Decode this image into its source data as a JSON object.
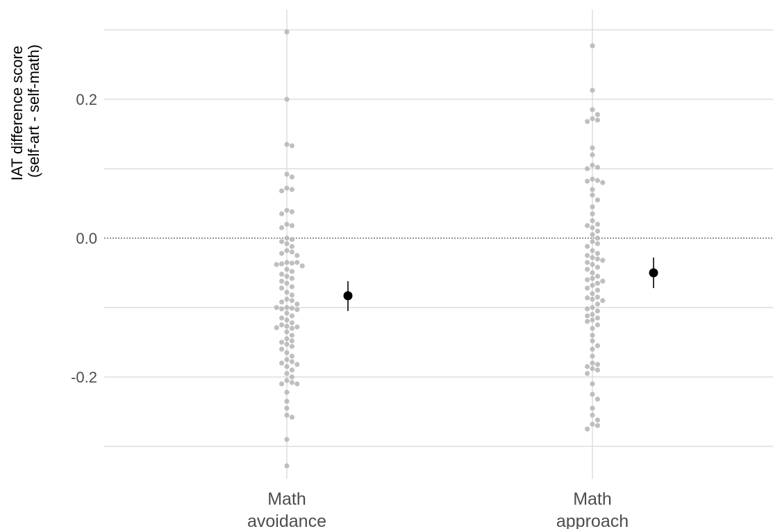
{
  "chart_data": {
    "type": "scatter",
    "title": "",
    "xlabel": "",
    "ylabel_lines": [
      "IAT difference score",
      "(self-art - self-math)"
    ],
    "categories": [
      "Math avoidance",
      "Math approach"
    ],
    "category_label_lines": [
      [
        "Math",
        "avoidance"
      ],
      [
        "Math",
        "approach"
      ]
    ],
    "ylim": [
      -0.3,
      0.3
    ],
    "y_ticks": [
      -0.2,
      0.0,
      0.2
    ],
    "y_tick_labels": [
      "-0.2",
      "0.0",
      "0.2"
    ],
    "reference_line": 0.0,
    "grid": true,
    "colors": {
      "points": "#b8b8b8",
      "summary": "#000000",
      "grid": "#d6d6d6",
      "reference": "#555555"
    },
    "series": [
      {
        "category": "Math avoidance",
        "points": [
          0.297,
          0.2,
          0.135,
          0.133,
          0.092,
          0.088,
          0.072,
          0.07,
          0.068,
          0.04,
          0.038,
          0.035,
          0.02,
          0.018,
          0.015,
          0.0,
          -0.002,
          -0.005,
          -0.008,
          -0.012,
          -0.018,
          -0.02,
          -0.022,
          -0.025,
          -0.035,
          -0.035,
          -0.036,
          -0.037,
          -0.038,
          -0.04,
          -0.045,
          -0.048,
          -0.052,
          -0.055,
          -0.058,
          -0.062,
          -0.065,
          -0.07,
          -0.072,
          -0.078,
          -0.082,
          -0.088,
          -0.09,
          -0.092,
          -0.095,
          -0.1,
          -0.1,
          -0.101,
          -0.102,
          -0.103,
          -0.108,
          -0.112,
          -0.115,
          -0.118,
          -0.122,
          -0.125,
          -0.127,
          -0.128,
          -0.129,
          -0.13,
          -0.135,
          -0.14,
          -0.145,
          -0.148,
          -0.15,
          -0.153,
          -0.156,
          -0.16,
          -0.165,
          -0.17,
          -0.175,
          -0.178,
          -0.18,
          -0.182,
          -0.185,
          -0.19,
          -0.195,
          -0.2,
          -0.205,
          -0.208,
          -0.21,
          -0.21,
          -0.222,
          -0.235,
          -0.245,
          -0.255,
          -0.258,
          -0.29,
          -0.328
        ],
        "mean": -0.083,
        "ci": [
          -0.105,
          -0.062
        ]
      },
      {
        "category": "Math approach",
        "points": [
          0.277,
          0.213,
          0.185,
          0.178,
          0.172,
          0.17,
          0.168,
          0.13,
          0.12,
          0.105,
          0.102,
          0.1,
          0.085,
          0.083,
          0.082,
          0.08,
          0.07,
          0.062,
          0.055,
          0.045,
          0.035,
          0.025,
          0.02,
          0.018,
          0.015,
          0.01,
          0.005,
          0.0,
          -0.005,
          -0.008,
          -0.012,
          -0.018,
          -0.022,
          -0.025,
          -0.028,
          -0.03,
          -0.032,
          -0.035,
          -0.038,
          -0.042,
          -0.045,
          -0.05,
          -0.055,
          -0.058,
          -0.06,
          -0.062,
          -0.065,
          -0.068,
          -0.072,
          -0.075,
          -0.08,
          -0.085,
          -0.086,
          -0.088,
          -0.09,
          -0.095,
          -0.1,
          -0.102,
          -0.105,
          -0.11,
          -0.112,
          -0.115,
          -0.118,
          -0.12,
          -0.125,
          -0.13,
          -0.14,
          -0.148,
          -0.155,
          -0.16,
          -0.17,
          -0.18,
          -0.182,
          -0.185,
          -0.188,
          -0.19,
          -0.195,
          -0.21,
          -0.225,
          -0.232,
          -0.245,
          -0.255,
          -0.262,
          -0.268,
          -0.27,
          -0.275
        ],
        "mean": -0.05,
        "ci": [
          -0.072,
          -0.028
        ]
      }
    ]
  }
}
